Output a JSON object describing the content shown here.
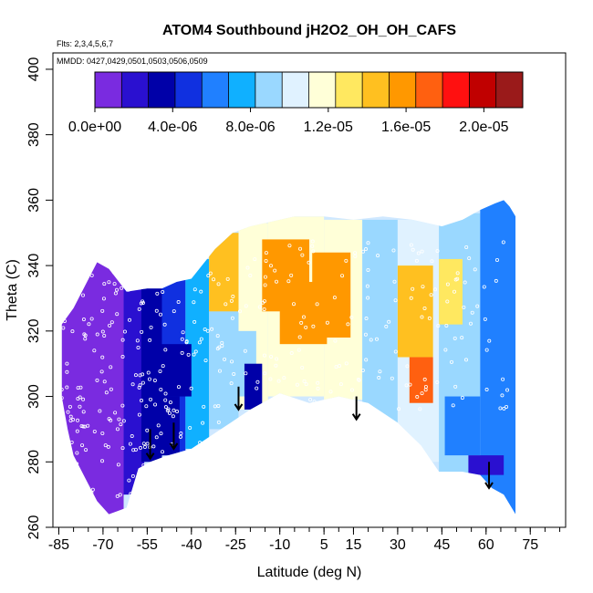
{
  "chart_data": {
    "type": "heatmap",
    "title": "ATOM4 Southbound jH2O2_OH_OH_CAFS",
    "flights_label": "Flts: 2,3,4,5,6,7",
    "dates_label": "MMDD: 0427,0429,0501,0503,0506,0509",
    "xlabel": "Latitude (deg N)",
    "ylabel": "Theta (C)",
    "xlim": [
      -87,
      87
    ],
    "ylim": [
      260,
      405
    ],
    "x_ticks": [
      -85,
      -70,
      -55,
      -40,
      -25,
      -10,
      5,
      15,
      30,
      45,
      60,
      75
    ],
    "x_tick_labels": [
      "-85",
      "-70",
      "-55",
      "-40",
      "-25",
      "-10",
      "5",
      "15",
      "30",
      "45",
      "60",
      "75"
    ],
    "y_ticks": [
      260,
      280,
      300,
      320,
      340,
      360,
      380,
      400
    ],
    "y_tick_labels": [
      "260",
      "280",
      "300",
      "320",
      "340",
      "360",
      "380",
      "400"
    ],
    "colorbar": {
      "min": 0.0,
      "max": 2.2e-05,
      "tick_values": [
        0.0,
        4e-06,
        8e-06,
        1.2e-05,
        1.6e-05,
        2e-05
      ],
      "tick_labels": [
        "0.0e+00",
        "4.0e-06",
        "8.0e-06",
        "1.2e-05",
        "1.6e-05",
        "2.0e-05"
      ],
      "colors": [
        "#7a2be0",
        "#2a10d0",
        "#0000a8",
        "#1030e0",
        "#2080ff",
        "#10b0ff",
        "#9ad8ff",
        "#e0f2ff",
        "#ffffd8",
        "#ffe860",
        "#ffc020",
        "#ff9800",
        "#ff6010",
        "#ff1010",
        "#c00000",
        "#9a1a1a"
      ]
    },
    "field_boundary": {
      "upper": [
        [
          -84,
          322
        ],
        [
          -80,
          327
        ],
        [
          -76,
          334
        ],
        [
          -72,
          341
        ],
        [
          -68,
          339
        ],
        [
          -62,
          332
        ],
        [
          -55,
          333
        ],
        [
          -50,
          333
        ],
        [
          -45,
          335
        ],
        [
          -40,
          336
        ],
        [
          -32,
          345
        ],
        [
          -26,
          350
        ],
        [
          -20,
          352
        ],
        [
          -15,
          353
        ],
        [
          -10,
          354
        ],
        [
          -5,
          355
        ],
        [
          5,
          355
        ],
        [
          15,
          354
        ],
        [
          25,
          355
        ],
        [
          35,
          354
        ],
        [
          40,
          353
        ],
        [
          45,
          352
        ],
        [
          52,
          354
        ],
        [
          58,
          357
        ],
        [
          63,
          359
        ],
        [
          66,
          360
        ],
        [
          68,
          358
        ],
        [
          70,
          355
        ]
      ],
      "lower": [
        [
          -84,
          300
        ],
        [
          -82,
          290
        ],
        [
          -80,
          282
        ],
        [
          -76,
          275
        ],
        [
          -72,
          268
        ],
        [
          -68,
          264
        ],
        [
          -62,
          266
        ],
        [
          -58,
          278
        ],
        [
          -54,
          280
        ],
        [
          -48,
          282
        ],
        [
          -40,
          284
        ],
        [
          -30,
          290
        ],
        [
          -20,
          296
        ],
        [
          -10,
          301
        ],
        [
          0,
          298
        ],
        [
          10,
          300
        ],
        [
          20,
          298
        ],
        [
          30,
          292
        ],
        [
          38,
          285
        ],
        [
          44,
          277
        ],
        [
          52,
          277
        ],
        [
          58,
          276
        ],
        [
          62,
          272
        ],
        [
          66,
          270
        ],
        [
          70,
          264
        ]
      ]
    },
    "field_cells": [
      {
        "lat": [
          -84,
          -63
        ],
        "theta": [
          264,
          342
        ],
        "value": 0.0
      },
      {
        "lat": [
          -63,
          -56
        ],
        "theta": [
          270,
          334
        ],
        "value": 1.5e-06
      },
      {
        "lat": [
          -57,
          -50
        ],
        "theta": [
          280,
          334
        ],
        "value": 3e-06
      },
      {
        "lat": [
          -50,
          -42
        ],
        "theta": [
          282,
          336
        ],
        "value": 4.5e-06
      },
      {
        "lat": [
          -42,
          -34
        ],
        "theta": [
          284,
          342
        ],
        "value": 7.5e-06
      },
      {
        "lat": [
          -34,
          -24
        ],
        "theta": [
          290,
          350
        ],
        "value": 9e-06
      },
      {
        "lat": [
          -24,
          -14
        ],
        "theta": [
          296,
          353
        ],
        "value": 1.1e-05
      },
      {
        "lat": [
          -14,
          5
        ],
        "theta": [
          300,
          355
        ],
        "value": 1.2e-05
      },
      {
        "lat": [
          5,
          18
        ],
        "theta": [
          299,
          354
        ],
        "value": 1.1e-05
      },
      {
        "lat": [
          18,
          30
        ],
        "theta": [
          292,
          354
        ],
        "value": 9.5e-06
      },
      {
        "lat": [
          30,
          44
        ],
        "theta": [
          280,
          354
        ],
        "value": 1.05e-05
      },
      {
        "lat": [
          44,
          58
        ],
        "theta": [
          276,
          356
        ],
        "value": 9e-06
      },
      {
        "lat": [
          58,
          70
        ],
        "theta": [
          264,
          360
        ],
        "value": 6e-06
      },
      {
        "lat": [
          -34,
          -24
        ],
        "theta": [
          326,
          350
        ],
        "value": 1.5e-05
      },
      {
        "lat": [
          -16,
          0
        ],
        "theta": [
          326,
          348
        ],
        "value": 1.55e-05
      },
      {
        "lat": [
          -10,
          6
        ],
        "theta": [
          316,
          335
        ],
        "value": 1.6e-05
      },
      {
        "lat": [
          1,
          14
        ],
        "theta": [
          318,
          344
        ],
        "value": 1.55e-05
      },
      {
        "lat": [
          30,
          42
        ],
        "theta": [
          312,
          340
        ],
        "value": 1.5e-05
      },
      {
        "lat": [
          34,
          42
        ],
        "theta": [
          298,
          312
        ],
        "value": 1.65e-05
      },
      {
        "lat": [
          44,
          52
        ],
        "theta": [
          322,
          342
        ],
        "value": 1.3e-05
      },
      {
        "lat": [
          -30,
          -18
        ],
        "theta": [
          300,
          320
        ],
        "value": 8.5e-06
      },
      {
        "lat": [
          -22,
          -16
        ],
        "theta": [
          296,
          310
        ],
        "value": 3e-06
      },
      {
        "lat": [
          -52,
          -44
        ],
        "theta": [
          282,
          300
        ],
        "value": 3.5e-06
      },
      {
        "lat": [
          -50,
          -40
        ],
        "theta": [
          300,
          316
        ],
        "value": 3e-06
      },
      {
        "lat": [
          46,
          58
        ],
        "theta": [
          282,
          300
        ],
        "value": 6e-06
      },
      {
        "lat": [
          54,
          66
        ],
        "theta": [
          276,
          282
        ],
        "value": 2e-06
      }
    ],
    "arrows": [
      {
        "lat": -54,
        "theta_top": 290,
        "theta_bottom": 281
      },
      {
        "lat": -46,
        "theta_top": 292,
        "theta_bottom": 284
      },
      {
        "lat": -24,
        "theta_top": 303,
        "theta_bottom": 296
      },
      {
        "lat": 16,
        "theta_top": 300,
        "theta_bottom": 293
      },
      {
        "lat": 61,
        "theta_top": 280,
        "theta_bottom": 272
      }
    ]
  }
}
